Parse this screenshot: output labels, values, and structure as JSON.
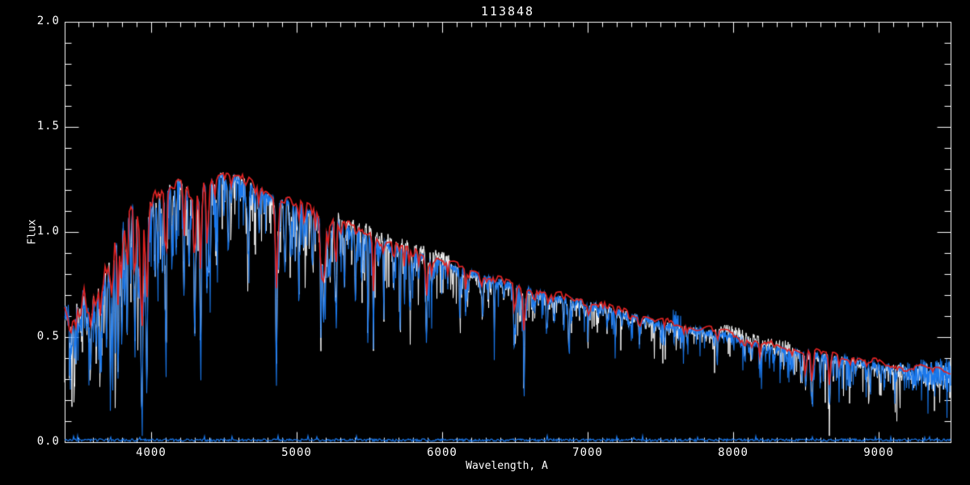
{
  "window": {
    "title": "113848"
  },
  "chart_data": {
    "type": "line",
    "title": "113848",
    "xlabel": "Wavelength, A",
    "ylabel": "Flux",
    "xlim": [
      3406,
      9494
    ],
    "ylim": [
      0.0,
      2.0
    ],
    "grid": false,
    "legend": null,
    "x_ticks": [
      {
        "value": 4000,
        "label": "4000"
      },
      {
        "value": 5000,
        "label": "5000"
      },
      {
        "value": 6000,
        "label": "6000"
      },
      {
        "value": 7000,
        "label": "7000"
      },
      {
        "value": 8000,
        "label": "8000"
      },
      {
        "value": 9000,
        "label": "9000"
      }
    ],
    "y_ticks": [
      {
        "value": 0.0,
        "label": "0.0"
      },
      {
        "value": 0.5,
        "label": "0.5"
      },
      {
        "value": 1.0,
        "label": "1.0"
      },
      {
        "value": 1.5,
        "label": "1.5"
      },
      {
        "value": 2.0,
        "label": "2.0"
      }
    ],
    "x_minor_interval": 100,
    "y_minor_interval": 0.1,
    "colors": {
      "background": "#000000",
      "axis": "#FFFFFF",
      "observed": "#1A78EC",
      "overlay": "#FFFFFF",
      "model": "#DD2222",
      "sky": "#1A78EC"
    },
    "series": [
      {
        "name": "observed-spectrum",
        "color": "#1A78EC",
        "role": "observed"
      },
      {
        "name": "comparison-spectrum",
        "color": "#FFFFFF",
        "role": "overlay"
      },
      {
        "name": "model-fit",
        "color": "#DD2222",
        "role": "model"
      },
      {
        "name": "sky-residual",
        "color": "#1A78EC",
        "role": "baseline"
      }
    ],
    "continuum": [
      [
        3406,
        0.63
      ],
      [
        3450,
        0.6
      ],
      [
        3500,
        0.62
      ],
      [
        3540,
        0.7
      ],
      [
        3580,
        0.66
      ],
      [
        3620,
        0.67
      ],
      [
        3660,
        0.72
      ],
      [
        3700,
        0.85
      ],
      [
        3740,
        0.97
      ],
      [
        3780,
        1.04
      ],
      [
        3830,
        1.09
      ],
      [
        3880,
        1.12
      ],
      [
        3930,
        1.09
      ],
      [
        3980,
        1.1
      ],
      [
        4030,
        1.18
      ],
      [
        4080,
        1.18
      ],
      [
        4130,
        1.21
      ],
      [
        4180,
        1.24
      ],
      [
        4230,
        1.21
      ],
      [
        4280,
        1.16
      ],
      [
        4330,
        1.18
      ],
      [
        4390,
        1.23
      ],
      [
        4450,
        1.26
      ],
      [
        4510,
        1.27
      ],
      [
        4570,
        1.26
      ],
      [
        4640,
        1.24
      ],
      [
        4720,
        1.21
      ],
      [
        4800,
        1.17
      ],
      [
        4880,
        1.14
      ],
      [
        4960,
        1.14
      ],
      [
        5040,
        1.12
      ],
      [
        5120,
        1.09
      ],
      [
        5200,
        1.06
      ],
      [
        5290,
        1.04
      ],
      [
        5380,
        1.01
      ],
      [
        5470,
        0.99
      ],
      [
        5560,
        0.96
      ],
      [
        5650,
        0.93
      ],
      [
        5740,
        0.91
      ],
      [
        5830,
        0.89
      ],
      [
        5920,
        0.87
      ],
      [
        6010,
        0.85
      ],
      [
        6100,
        0.82
      ],
      [
        6200,
        0.8
      ],
      [
        6300,
        0.78
      ],
      [
        6400,
        0.76
      ],
      [
        6500,
        0.74
      ],
      [
        6600,
        0.72
      ],
      [
        6700,
        0.7
      ],
      [
        6800,
        0.68
      ],
      [
        6900,
        0.67
      ],
      [
        7000,
        0.66
      ],
      [
        7100,
        0.64
      ],
      [
        7200,
        0.62
      ],
      [
        7300,
        0.6
      ],
      [
        7400,
        0.58
      ],
      [
        7500,
        0.56
      ],
      [
        7600,
        0.545
      ],
      [
        7700,
        0.535
      ],
      [
        7800,
        0.525
      ],
      [
        7900,
        0.515
      ],
      [
        8000,
        0.5
      ],
      [
        8100,
        0.475
      ],
      [
        8200,
        0.455
      ],
      [
        8300,
        0.44
      ],
      [
        8400,
        0.43
      ],
      [
        8500,
        0.42
      ],
      [
        8600,
        0.41
      ],
      [
        8700,
        0.4
      ],
      [
        8800,
        0.39
      ],
      [
        8900,
        0.375
      ],
      [
        9000,
        0.36
      ],
      [
        9100,
        0.35
      ],
      [
        9200,
        0.34
      ],
      [
        9300,
        0.335
      ],
      [
        9400,
        0.33
      ],
      [
        9494,
        0.325
      ]
    ],
    "strong_lines": [
      [
        3580,
        0.3,
        5
      ],
      [
        3655,
        0.28,
        4
      ],
      [
        3694,
        0.3,
        4
      ],
      [
        3722,
        0.45,
        4
      ],
      [
        3736,
        0.5,
        4
      ],
      [
        3752,
        0.42,
        4
      ],
      [
        3771,
        0.48,
        4
      ],
      [
        3798,
        0.5,
        4
      ],
      [
        3820,
        0.3,
        4
      ],
      [
        3835,
        0.55,
        4
      ],
      [
        3860,
        0.28,
        4
      ],
      [
        3889,
        0.6,
        5
      ],
      [
        3912,
        0.35,
        4
      ],
      [
        3934,
        0.8,
        5
      ],
      [
        3952,
        0.4,
        4
      ],
      [
        3970,
        0.74,
        5
      ],
      [
        4026,
        0.25,
        4
      ],
      [
        4046,
        0.28,
        4
      ],
      [
        4077,
        0.32,
        4
      ],
      [
        4101,
        0.62,
        5
      ],
      [
        4144,
        0.3,
        4
      ],
      [
        4172,
        0.28,
        4
      ],
      [
        4226,
        0.42,
        4
      ],
      [
        4260,
        0.28,
        4
      ],
      [
        4300,
        0.38,
        7
      ],
      [
        4340,
        0.65,
        5
      ],
      [
        4383,
        0.42,
        4
      ],
      [
        4405,
        0.32,
        4
      ],
      [
        4455,
        0.25,
        4
      ],
      [
        4531,
        0.28,
        5
      ],
      [
        4668,
        0.28,
        5
      ],
      [
        4861,
        0.66,
        5
      ],
      [
        4920,
        0.28,
        4
      ],
      [
        4957,
        0.22,
        4
      ],
      [
        5015,
        0.26,
        4
      ],
      [
        5110,
        0.22,
        4
      ],
      [
        5168,
        0.42,
        5
      ],
      [
        5185,
        0.46,
        5
      ],
      [
        5230,
        0.24,
        4
      ],
      [
        5270,
        0.4,
        5
      ],
      [
        5328,
        0.28,
        4
      ],
      [
        5404,
        0.24,
        4
      ],
      [
        5446,
        0.22,
        4
      ],
      [
        5490,
        0.5,
        3
      ],
      [
        5528,
        0.3,
        4
      ],
      [
        5711,
        0.42,
        3
      ],
      [
        5782,
        0.28,
        3
      ],
      [
        5892,
        0.46,
        5
      ],
      [
        6122,
        0.28,
        3
      ],
      [
        6162,
        0.26,
        3
      ],
      [
        6280,
        0.22,
        3
      ],
      [
        6360,
        0.2,
        3
      ],
      [
        6495,
        0.3,
        4
      ],
      [
        6563,
        0.63,
        4
      ],
      [
        6717,
        0.22,
        3
      ],
      [
        6870,
        0.3,
        5
      ],
      [
        7190,
        0.2,
        4
      ],
      [
        8183,
        0.25,
        3
      ],
      [
        8195,
        0.25,
        3
      ],
      [
        8327,
        0.2,
        3
      ],
      [
        8413,
        0.22,
        3
      ],
      [
        8468,
        0.28,
        4
      ],
      [
        8498,
        0.38,
        4
      ],
      [
        8542,
        0.57,
        5
      ],
      [
        8598,
        0.22,
        3
      ],
      [
        8662,
        0.56,
        5
      ],
      [
        8688,
        0.25,
        3
      ],
      [
        8730,
        0.25,
        3
      ],
      [
        8807,
        0.22,
        3
      ],
      [
        8940,
        0.2,
        3
      ],
      [
        9015,
        0.2,
        3
      ],
      [
        9110,
        0.22,
        3
      ],
      [
        9245,
        0.2,
        3
      ]
    ],
    "model": {
      "offset": 0.018,
      "micro_scale": 0.45,
      "micro_widen": 1.6,
      "wiggle": [
        [
          57,
          1.3,
          0.012
        ],
        [
          23,
          0.5,
          0.007
        ]
      ],
      "uv_wiggle": [
        [
          11.7,
          0.0,
          0.03
        ],
        [
          29,
          1.0,
          0.018
        ]
      ],
      "uv_limit": 3730,
      "lines": [
        [
          3735,
          0.25,
          6
        ],
        [
          3770,
          0.25,
          6
        ],
        [
          3798,
          0.28,
          6
        ],
        [
          3835,
          0.3,
          6
        ],
        [
          3889,
          0.35,
          7
        ],
        [
          3934,
          0.42,
          8
        ],
        [
          3970,
          0.38,
          8
        ],
        [
          4101,
          0.3,
          7
        ],
        [
          4226,
          0.22,
          6
        ],
        [
          4300,
          0.22,
          8
        ],
        [
          4340,
          0.33,
          7
        ],
        [
          4383,
          0.24,
          6
        ],
        [
          4861,
          0.33,
          7
        ],
        [
          5168,
          0.26,
          7
        ],
        [
          5185,
          0.26,
          7
        ],
        [
          5270,
          0.2,
          6
        ],
        [
          5528,
          0.15,
          5
        ],
        [
          5892,
          0.22,
          6
        ],
        [
          6162,
          0.12,
          5
        ],
        [
          6495,
          0.12,
          5
        ],
        [
          6563,
          0.3,
          6
        ],
        [
          7190,
          0.08,
          5
        ],
        [
          8183,
          0.12,
          5
        ],
        [
          8498,
          0.28,
          6
        ],
        [
          8542,
          0.4,
          7
        ],
        [
          8662,
          0.38,
          7
        ],
        [
          8730,
          0.12,
          5
        ]
      ]
    },
    "overlay_offsets": {
      "regions": [
        [
          5280,
          6060,
          0.03
        ],
        [
          7880,
          8420,
          0.03
        ]
      ],
      "default": -0.006,
      "line_scale": 0.95,
      "micro_scale": 1.05
    },
    "noise": {
      "micro": {
        "seed": 1234,
        "count": 240,
        "wl_min": 3430,
        "wl_span": 6064,
        "pow": 1.4
      },
      "blue": {
        "seed": 9,
        "base": 0.016,
        "uv": 0.052,
        "uv_limit": 3705,
        "blob": [
          7585,
          7658,
          0.095
        ],
        "ramp_start": 9050,
        "ramp_max": 0.07,
        "zones": [
          4700,
          6000,
          8300
        ],
        "spike_p": [
          0.4,
          0.28,
          0.16,
          0.22
        ],
        "spike_d": [
          0.26,
          0.2,
          0.13,
          0.16
        ]
      },
      "white": {
        "seed": 7,
        "base": 0.024,
        "uv": 0.055,
        "uv_limit": 3705,
        "blob": null,
        "ramp_start": 9050,
        "ramp_max": 0.06,
        "zones": [
          4700,
          6000,
          8300
        ],
        "spike_p": [
          0.3,
          0.22,
          0.14,
          0.18
        ],
        "spike_d": [
          0.3,
          0.24,
          0.16,
          0.2
        ]
      }
    },
    "sky": {
      "seed": 3,
      "level": 0.004,
      "jitter": 0.012,
      "bump_p": 0.02,
      "bump": 0.018
    }
  }
}
